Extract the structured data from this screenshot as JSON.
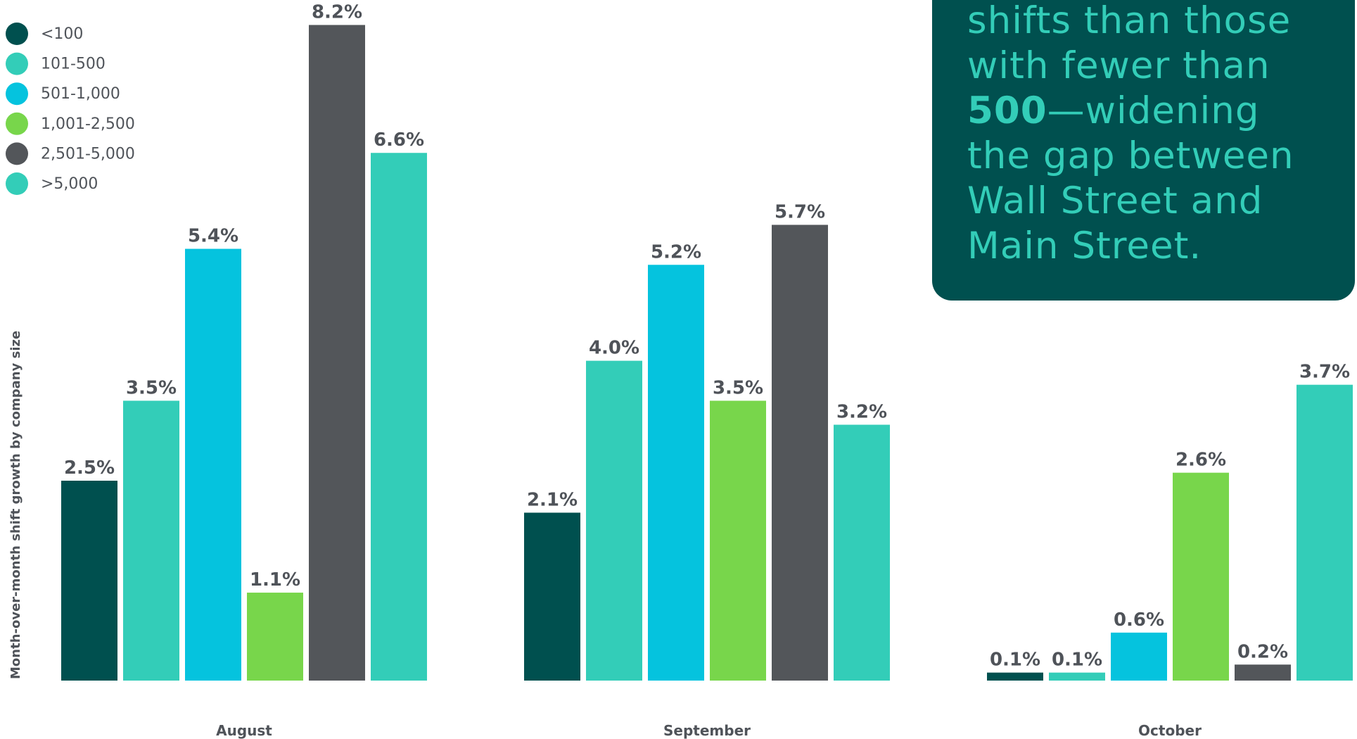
{
  "callout": {
    "line1": "shifts than those",
    "line2": "with fewer than",
    "line3_bold": "500",
    "line3_rest": "—widening",
    "line4": "the gap between",
    "line5": "Wall Street and",
    "line6": "Main Street."
  },
  "chart_data": {
    "type": "bar",
    "ylabel": "Month-over-month shift growth by company size",
    "categories": [
      "August",
      "September",
      "October"
    ],
    "series": [
      {
        "name": "<100",
        "color": "#00504f",
        "values": [
          2.5,
          2.1,
          0.1
        ],
        "labels": [
          "2.5%",
          "2.1%",
          "0.1%"
        ]
      },
      {
        "name": "101-500",
        "color": "#33cdb8",
        "values": [
          3.5,
          4.0,
          0.1
        ],
        "labels": [
          "3.5%",
          "4.0%",
          "0.1%"
        ]
      },
      {
        "name": "501-1,000",
        "color": "#05c3de",
        "values": [
          5.4,
          5.2,
          0.6
        ],
        "labels": [
          "5.4%",
          "5.2%",
          "0.6%"
        ]
      },
      {
        "name": "1,001-2,500",
        "color": "#78d64b",
        "values": [
          1.1,
          3.5,
          2.6
        ],
        "labels": [
          "1.1%",
          "3.5%",
          "2.6%"
        ]
      },
      {
        "name": "2,501-5,000",
        "color": "#53565a",
        "values": [
          8.2,
          5.7,
          0.2
        ],
        "labels": [
          "8.2%",
          "5.7%",
          "0.2%"
        ]
      },
      {
        "name": ">5,000",
        "color": "#33cdb8",
        "values": [
          6.6,
          3.2,
          3.7
        ],
        "labels": [
          "6.6%",
          "3.2%",
          "3.7%"
        ]
      }
    ],
    "ylim": [
      0,
      8.2
    ],
    "grid": false,
    "legend": "top-left"
  }
}
